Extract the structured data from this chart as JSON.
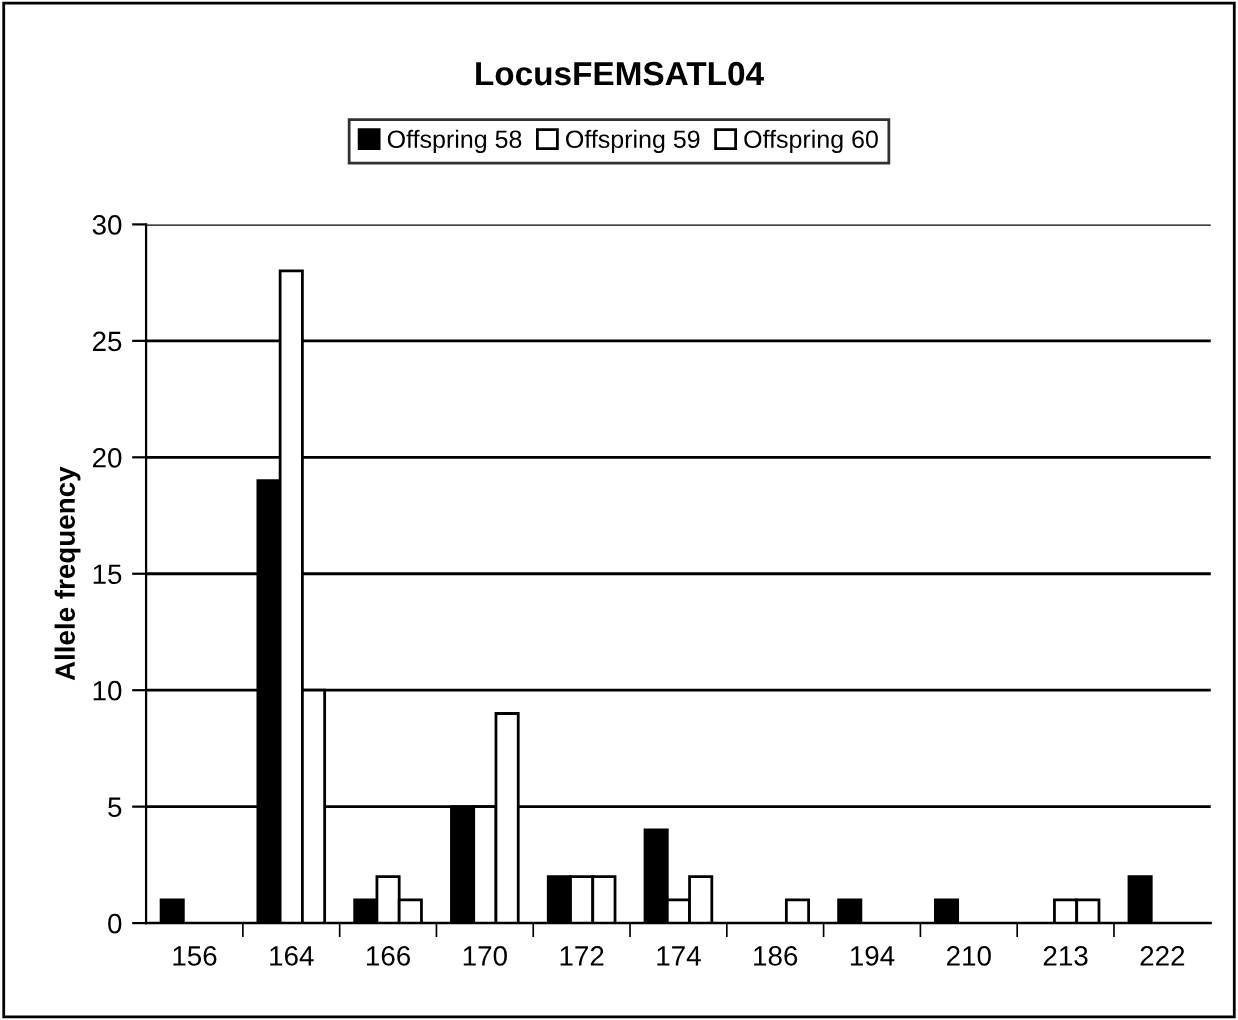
{
  "chart_data": {
    "type": "bar",
    "title": "LocusFEMSATL04",
    "ylabel": "Allele frequency",
    "categories": [
      "156",
      "164",
      "166",
      "170",
      "172",
      "174",
      "186",
      "194",
      "210",
      "213",
      "222"
    ],
    "series": [
      {
        "name": "Offspring 58",
        "color": "#000000",
        "values": [
          1,
          19,
          1,
          5,
          2,
          4,
          0,
          1,
          1,
          0,
          2
        ]
      },
      {
        "name": "Offspring 59",
        "color": "#ffffff",
        "values": [
          0,
          28,
          2,
          5,
          2,
          1,
          0,
          0,
          0,
          1,
          0
        ]
      },
      {
        "name": "Offspring 60",
        "color": "#ffffff",
        "values": [
          0,
          10,
          1,
          9,
          2,
          2,
          1,
          0,
          0,
          1,
          0
        ]
      }
    ],
    "ylim": [
      0,
      30
    ],
    "yticks": [
      0,
      5,
      10,
      15,
      20,
      25,
      30
    ],
    "grid": "y",
    "legend": "top"
  }
}
